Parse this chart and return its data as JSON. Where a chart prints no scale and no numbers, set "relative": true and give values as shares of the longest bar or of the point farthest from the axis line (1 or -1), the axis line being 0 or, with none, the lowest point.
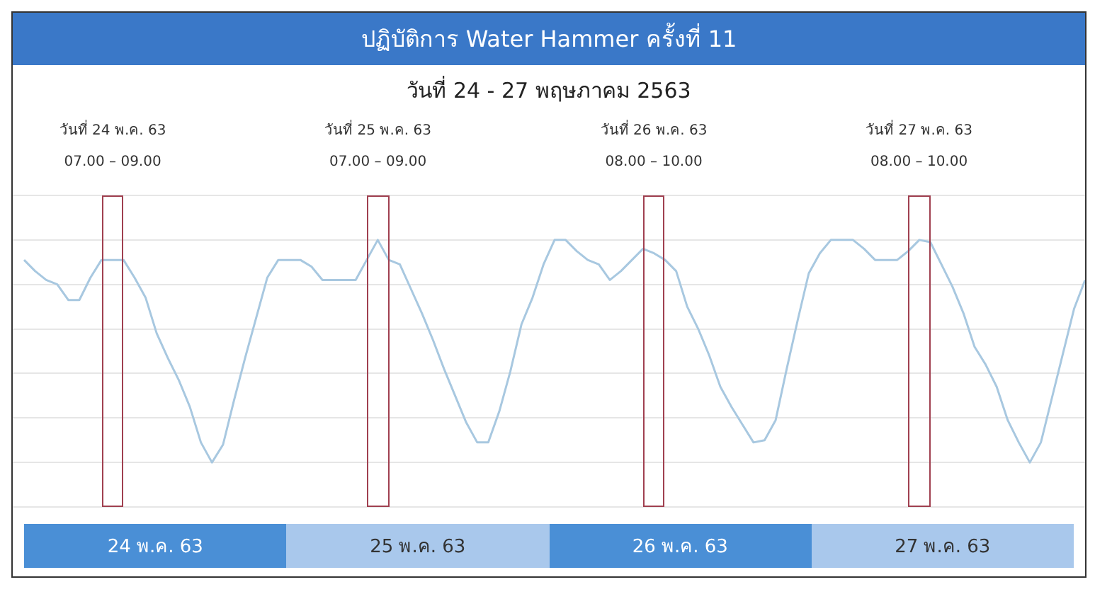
{
  "chart_data": {
    "type": "line",
    "title": "ปฏิบัติการ Water Hammer ครั้งที่ 11",
    "subtitle": "วันที่ 24 - 27 พฤษภาคม 2563",
    "relative": true,
    "grid": "y",
    "legend": false,
    "marker": "none",
    "line_style": "solid",
    "categories": [
      null,
      null,
      null,
      null,
      null,
      null,
      null,
      null,
      null,
      null,
      null,
      null,
      null,
      null,
      null,
      null,
      null,
      null,
      null,
      null,
      null,
      null,
      null,
      null,
      null,
      null,
      null,
      null,
      null,
      null,
      null,
      null,
      null,
      null,
      null,
      null,
      null,
      null,
      null,
      null,
      null,
      null,
      null,
      null,
      null,
      null,
      null,
      null,
      null,
      null,
      null,
      null,
      null,
      null,
      null,
      null,
      null,
      null,
      null,
      null,
      null,
      null,
      null,
      null,
      null,
      null,
      null,
      null,
      null,
      null,
      null,
      null,
      null,
      null,
      null,
      null,
      null,
      null,
      null,
      null,
      null,
      null,
      null,
      null,
      null,
      null,
      null,
      null,
      null,
      null,
      null,
      null,
      null,
      null,
      null,
      null,
      null
    ],
    "annotations": [
      "วันที่ 24 พ.ค. 63\n07.00 – 09.00",
      "วันที่ 25 พ.ค. 63\n07.00 – 09.00",
      "วันที่ 26 พ.ค. 63\n08.00 – 10.00",
      "วันที่ 27 พ.ค. 63\n08.00 – 10.00",
      "24 พ.ค. 63",
      "25 พ.ค. 63",
      "26 พ.ค. 63",
      "27 พ.ค. 63"
    ],
    "series": [
      {
        "color": "#a8c8e0",
        "values": [
          0.91,
          0.86,
          0.82,
          0.8,
          0.73,
          0.73,
          0.83,
          0.91,
          0.91,
          0.91,
          0.83,
          0.74,
          0.58,
          0.47,
          0.37,
          0.25,
          0.09,
          0,
          0.08,
          0.28,
          0.47,
          0.65,
          0.83,
          0.91,
          0.91,
          0.91,
          0.88,
          0.82,
          0.82,
          0.82,
          0.82,
          0.91,
          1,
          0.91,
          0.89,
          0.78,
          0.67,
          0.55,
          0.42,
          0.3,
          0.18,
          0.09,
          0.09,
          0.23,
          0.41,
          0.62,
          0.74,
          0.89,
          1,
          1,
          0.95,
          0.91,
          0.89,
          0.82,
          0.86,
          0.91,
          0.96,
          0.94,
          0.91,
          0.86,
          0.7,
          0.6,
          0.48,
          0.34,
          0.25,
          0.17,
          0.09,
          0.1,
          0.19,
          0.42,
          0.64,
          0.85,
          0.94,
          1,
          1,
          1,
          0.96,
          0.91,
          0.91,
          0.91,
          0.95,
          1,
          0.99,
          0.89,
          0.79,
          0.67,
          0.52,
          0.44,
          0.34,
          0.19,
          0.09,
          0,
          0.09,
          0.29,
          0.49,
          0.69,
          0.82
        ]
      }
    ]
  }
}
